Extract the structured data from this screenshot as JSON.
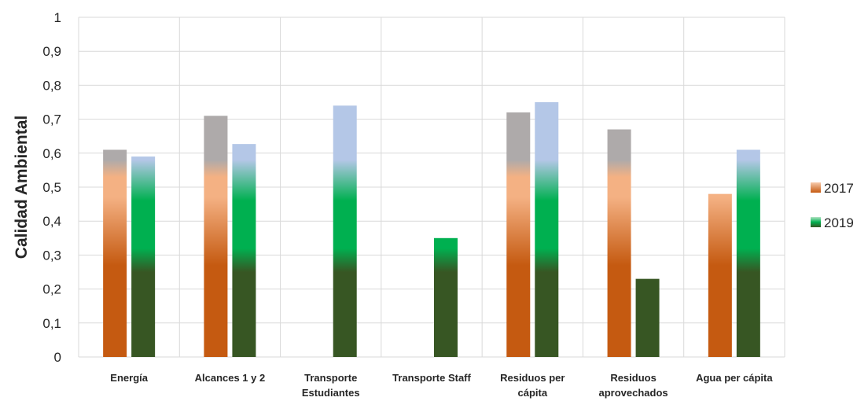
{
  "chart_data": {
    "type": "bar",
    "title": "",
    "xlabel": "",
    "ylabel": "Calidad Ambiental",
    "ylim": [
      0,
      1
    ],
    "yticks": [
      "0",
      "0,1",
      "0,2",
      "0,3",
      "0,4",
      "0,5",
      "0,6",
      "0,7",
      "0,8",
      "0,9",
      "1"
    ],
    "categories": [
      [
        "Energía"
      ],
      [
        "Alcances 1 y 2"
      ],
      [
        "Transporte",
        "Estudiantes"
      ],
      [
        "Transporte Staff"
      ],
      [
        "Residuos per",
        "cápita"
      ],
      [
        "Residuos",
        "aprovechados"
      ],
      [
        "Agua per cápita"
      ]
    ],
    "series": [
      {
        "name": "2017",
        "values": [
          0.61,
          0.71,
          null,
          null,
          0.72,
          0.67,
          0.48
        ]
      },
      {
        "name": "2019",
        "values": [
          0.59,
          0.627,
          0.74,
          0.35,
          0.75,
          0.23,
          0.61
        ]
      }
    ],
    "grid": true,
    "legend_position": "right",
    "colors": {
      "2017": {
        "dark": "#c55a11",
        "mid": "#f4b183",
        "top": "#aeaaaa"
      },
      "2019": {
        "dark": "#375623",
        "mid": "#00b050",
        "top": "#b4c7e7"
      },
      "grid": "#d9d9d9",
      "text": "#262626"
    }
  }
}
